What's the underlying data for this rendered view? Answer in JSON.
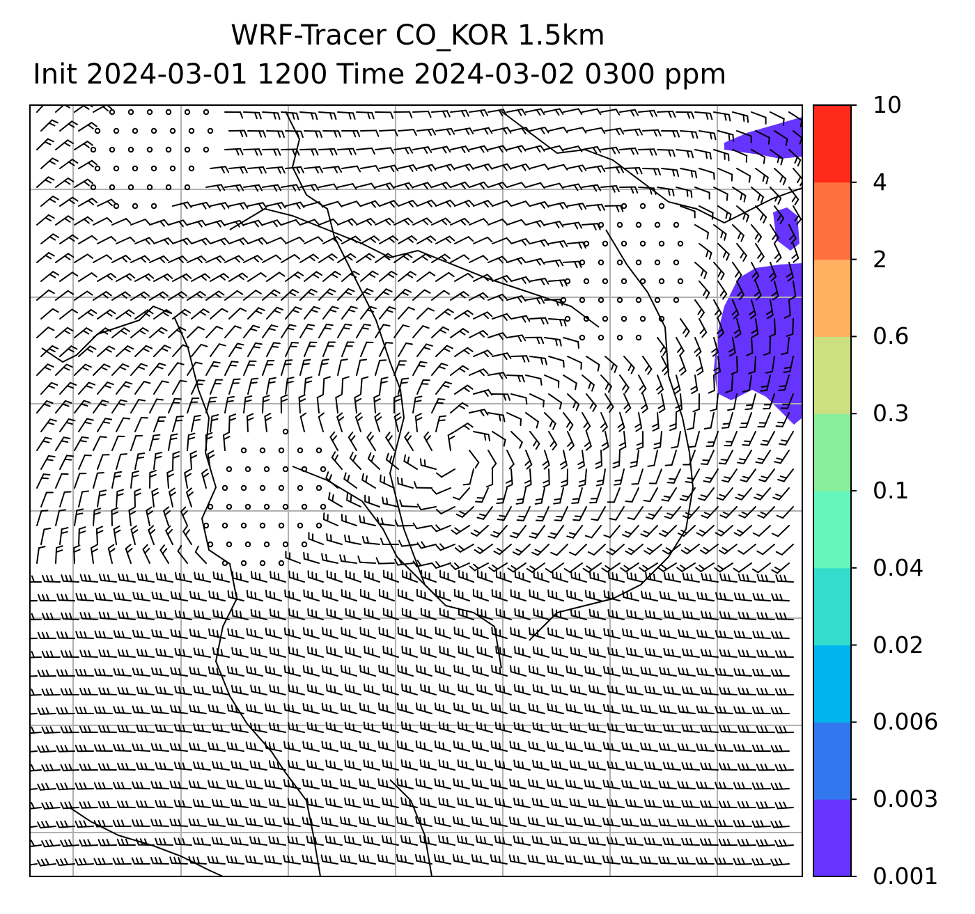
{
  "title": {
    "line1": "WRF-Tracer CO_KOR 1.5km",
    "line2": "Init 2024-03-01 1200 Time 2024-03-02 0300 ppm"
  },
  "colorbar": {
    "levels": [
      "0.001",
      "0.003",
      "0.006",
      "0.02",
      "0.04",
      "0.1",
      "0.3",
      "0.6",
      "2",
      "4",
      "10"
    ],
    "colors": [
      "#6633ff",
      "#3377ee",
      "#00b4ee",
      "#33dccc",
      "#66f5bb",
      "#88ee99",
      "#cce080",
      "#ffb060",
      "#ff7040",
      "#ff2a1a"
    ]
  },
  "map": {
    "tracer_color": "#6633ff",
    "gridline_color": "#b0b0b0",
    "coastline_color": "#000000",
    "barb_color": "#000000"
  }
}
